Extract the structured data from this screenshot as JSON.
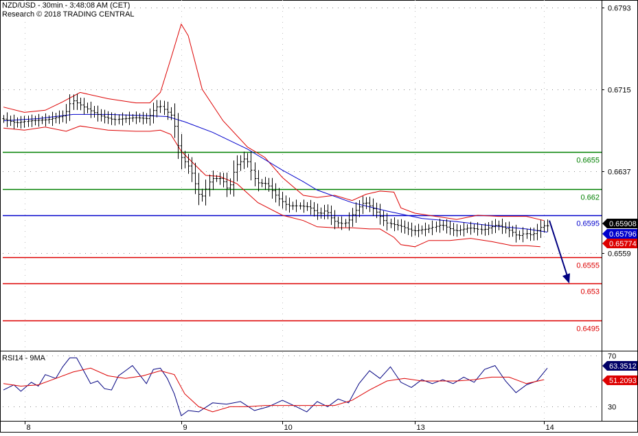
{
  "header": {
    "title": "NZD/USD - 30min - 3:48:08 AM (CET)",
    "subtitle": "Research © 2018 TRADING CENTRAL"
  },
  "rsi_panel": {
    "label": "RSI14 - 9MA"
  },
  "chart_data": [
    {
      "type": "line",
      "title": "NZD/USD - 30min - 3:48:08 AM (CET)",
      "x_tick_labels": [
        "8",
        "9",
        "10",
        "13",
        "14"
      ],
      "y_tick_labels": [
        "0.6793",
        "0.6715",
        "0.6637",
        "0.6559"
      ],
      "ylim": [
        0.6466,
        0.68
      ],
      "grid": "dotted horizontal",
      "horizontal_levels": [
        {
          "label": "0.6655",
          "value": 0.6655,
          "color": "#008000"
        },
        {
          "label": "0.662",
          "value": 0.662,
          "color": "#008000"
        },
        {
          "label": "0.6595",
          "value": 0.6595,
          "color": "#0000cc"
        },
        {
          "label": "0.6555",
          "value": 0.6555,
          "color": "#dd0000"
        },
        {
          "label": "0.653",
          "value": 0.653,
          "color": "#dd0000"
        },
        {
          "label": "0.6495",
          "value": 0.6495,
          "color": "#dd0000"
        }
      ],
      "price_badges": [
        {
          "label": "0.65908",
          "value": 0.65908,
          "bg": "#000000"
        },
        {
          "label": "0.65796",
          "value": 0.65796,
          "bg": "#0000cc"
        },
        {
          "label": "0.65774",
          "value": 0.65774,
          "bg": "#dd0000"
        }
      ],
      "forecast_arrow": {
        "from": 0.659,
        "to": 0.653
      },
      "close_path": [
        [
          0,
          0.6687
        ],
        [
          4,
          0.6683
        ],
        [
          8,
          0.6685
        ],
        [
          13,
          0.6686
        ],
        [
          18,
          0.669
        ],
        [
          20,
          0.6705
        ],
        [
          23,
          0.6699
        ],
        [
          28,
          0.669
        ],
        [
          32,
          0.6686
        ],
        [
          38,
          0.6688
        ],
        [
          42,
          0.6687
        ],
        [
          43,
          0.6693
        ],
        [
          45,
          0.67
        ],
        [
          49,
          0.6689
        ],
        [
          51,
          0.6652
        ],
        [
          54,
          0.664
        ],
        [
          57,
          0.661
        ],
        [
          60,
          0.663
        ],
        [
          63,
          0.663
        ],
        [
          65,
          0.6618
        ],
        [
          67,
          0.6642
        ],
        [
          70,
          0.665
        ],
        [
          73,
          0.6626
        ],
        [
          76,
          0.6625
        ],
        [
          79,
          0.6612
        ],
        [
          82,
          0.6604
        ],
        [
          85,
          0.6604
        ],
        [
          88,
          0.6603
        ],
        [
          91,
          0.6596
        ],
        [
          93,
          0.66
        ],
        [
          95,
          0.659
        ],
        [
          97,
          0.6587
        ],
        [
          99,
          0.6588
        ],
        [
          101,
          0.6598
        ],
        [
          104,
          0.6608
        ],
        [
          107,
          0.66
        ],
        [
          110,
          0.6588
        ],
        [
          114,
          0.6585
        ],
        [
          118,
          0.658
        ],
        [
          122,
          0.6582
        ],
        [
          126,
          0.6586
        ],
        [
          130,
          0.658
        ],
        [
          134,
          0.6583
        ],
        [
          138,
          0.6581
        ],
        [
          142,
          0.6586
        ],
        [
          146,
          0.658
        ],
        [
          148,
          0.6575
        ],
        [
          150,
          0.6578
        ],
        [
          152,
          0.6576
        ],
        [
          155,
          0.6585
        ]
      ],
      "ma_path": [
        [
          0,
          0.6685
        ],
        [
          10,
          0.6687
        ],
        [
          20,
          0.6691
        ],
        [
          30,
          0.6691
        ],
        [
          40,
          0.669
        ],
        [
          47,
          0.6689
        ],
        [
          52,
          0.6684
        ],
        [
          60,
          0.6674
        ],
        [
          70,
          0.6658
        ],
        [
          80,
          0.6638
        ],
        [
          86,
          0.6627
        ],
        [
          90,
          0.6619
        ],
        [
          100,
          0.6607
        ],
        [
          110,
          0.6599
        ],
        [
          120,
          0.6592
        ],
        [
          130,
          0.6589
        ],
        [
          140,
          0.6585
        ],
        [
          150,
          0.6582
        ],
        [
          156,
          0.6579
        ]
      ],
      "bb_upper_path": [
        [
          0,
          0.6698
        ],
        [
          6,
          0.6693
        ],
        [
          12,
          0.6695
        ],
        [
          17,
          0.6703
        ],
        [
          22,
          0.6712
        ],
        [
          30,
          0.6706
        ],
        [
          38,
          0.6702
        ],
        [
          42,
          0.6702
        ],
        [
          45,
          0.6712
        ],
        [
          48,
          0.6744
        ],
        [
          51,
          0.6777
        ],
        [
          53,
          0.6766
        ],
        [
          57,
          0.6715
        ],
        [
          63,
          0.6685
        ],
        [
          70,
          0.666
        ],
        [
          75,
          0.665
        ],
        [
          80,
          0.6631
        ],
        [
          86,
          0.6614
        ],
        [
          90,
          0.6612
        ],
        [
          95,
          0.6614
        ],
        [
          100,
          0.6609
        ],
        [
          104,
          0.6615
        ],
        [
          108,
          0.6618
        ],
        [
          112,
          0.6617
        ],
        [
          114,
          0.6602
        ],
        [
          118,
          0.6597
        ],
        [
          124,
          0.6594
        ],
        [
          130,
          0.6591
        ],
        [
          136,
          0.6595
        ],
        [
          142,
          0.6594
        ],
        [
          150,
          0.6594
        ],
        [
          155,
          0.659
        ]
      ],
      "bb_lower_path": [
        [
          0,
          0.6678
        ],
        [
          6,
          0.6676
        ],
        [
          12,
          0.6679
        ],
        [
          18,
          0.6675
        ],
        [
          22,
          0.668
        ],
        [
          30,
          0.6676
        ],
        [
          38,
          0.6675
        ],
        [
          42,
          0.6675
        ],
        [
          45,
          0.6676
        ],
        [
          48,
          0.6672
        ],
        [
          51,
          0.6656
        ],
        [
          54,
          0.6646
        ],
        [
          58,
          0.6633
        ],
        [
          62,
          0.6632
        ],
        [
          67,
          0.6625
        ],
        [
          73,
          0.6607
        ],
        [
          80,
          0.6595
        ],
        [
          86,
          0.659
        ],
        [
          90,
          0.6584
        ],
        [
          95,
          0.6583
        ],
        [
          100,
          0.6583
        ],
        [
          105,
          0.6582
        ],
        [
          108,
          0.6582
        ],
        [
          112,
          0.6574
        ],
        [
          114,
          0.6567
        ],
        [
          118,
          0.6565
        ],
        [
          122,
          0.6571
        ],
        [
          128,
          0.6571
        ],
        [
          134,
          0.6573
        ],
        [
          140,
          0.657
        ],
        [
          146,
          0.6566
        ],
        [
          150,
          0.6566
        ],
        [
          154,
          0.6565
        ]
      ]
    },
    {
      "type": "line",
      "title": "RSI14 - 9MA",
      "y_tick_labels": [
        "70",
        "30"
      ],
      "ylim": [
        19,
        73
      ],
      "price_badges": [
        {
          "label": "63.3512",
          "value": 63.3512,
          "bg": "#000066"
        },
        {
          "label": "51.2093",
          "value": 51.2093,
          "bg": "#dd0000"
        }
      ],
      "series": [
        {
          "name": "RSI14",
          "color": "#000080",
          "path": [
            [
              0,
              43
            ],
            [
              3,
              47
            ],
            [
              5,
              42
            ],
            [
              8,
              49
            ],
            [
              10,
              46
            ],
            [
              12,
              55
            ],
            [
              15,
              52
            ],
            [
              17,
              61
            ],
            [
              19,
              68
            ],
            [
              21,
              68
            ],
            [
              23,
              58
            ],
            [
              25,
              48
            ],
            [
              27,
              50
            ],
            [
              29,
              44
            ],
            [
              31,
              43
            ],
            [
              33,
              54
            ],
            [
              35,
              58
            ],
            [
              37,
              62
            ],
            [
              39,
              55
            ],
            [
              41,
              48
            ],
            [
              43,
              59
            ],
            [
              45,
              60
            ],
            [
              47,
              52
            ],
            [
              49,
              40
            ],
            [
              51,
              23
            ],
            [
              53,
              27
            ],
            [
              56,
              26
            ],
            [
              60,
              33
            ],
            [
              64,
              32
            ],
            [
              68,
              34
            ],
            [
              72,
              27
            ],
            [
              76,
              30
            ],
            [
              80,
              35
            ],
            [
              84,
              30
            ],
            [
              87,
              26
            ],
            [
              90,
              34
            ],
            [
              93,
              30
            ],
            [
              96,
              36
            ],
            [
              99,
              33
            ],
            [
              102,
              48
            ],
            [
              105,
              58
            ],
            [
              108,
              52
            ],
            [
              111,
              61
            ],
            [
              114,
              49
            ],
            [
              117,
              45
            ],
            [
              120,
              51
            ],
            [
              123,
              48
            ],
            [
              126,
              51
            ],
            [
              129,
              48
            ],
            [
              132,
              53
            ],
            [
              135,
              49
            ],
            [
              138,
              59
            ],
            [
              141,
              62
            ],
            [
              144,
              50
            ],
            [
              147,
              41
            ],
            [
              150,
              47
            ],
            [
              153,
              50
            ],
            [
              156,
              60
            ]
          ]
        },
        {
          "name": "9MA",
          "color": "#dd0000",
          "path": [
            [
              0,
              48
            ],
            [
              5,
              46
            ],
            [
              10,
              47
            ],
            [
              15,
              52
            ],
            [
              20,
              57
            ],
            [
              25,
              60
            ],
            [
              30,
              54
            ],
            [
              35,
              52
            ],
            [
              40,
              54
            ],
            [
              45,
              58
            ],
            [
              49,
              55
            ],
            [
              52,
              40
            ],
            [
              56,
              30
            ],
            [
              60,
              26
            ],
            [
              65,
              30
            ],
            [
              70,
              30
            ],
            [
              75,
              31
            ],
            [
              80,
              31
            ],
            [
              85,
              31
            ],
            [
              90,
              31
            ],
            [
              95,
              31
            ],
            [
              100,
              35
            ],
            [
              105,
              43
            ],
            [
              110,
              50
            ],
            [
              115,
              52
            ],
            [
              120,
              50
            ],
            [
              125,
              50
            ],
            [
              130,
              50
            ],
            [
              135,
              51
            ],
            [
              140,
              53
            ],
            [
              145,
              53
            ],
            [
              150,
              48
            ],
            [
              155,
              51
            ]
          ]
        }
      ]
    }
  ]
}
